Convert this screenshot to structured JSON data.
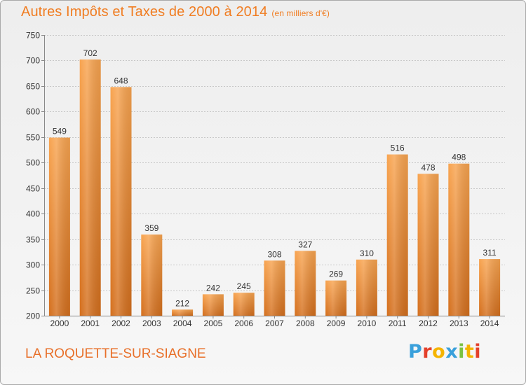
{
  "chart_data": {
    "type": "bar",
    "title": "Autres Impôts et Taxes de 2000 à 2014",
    "unit_label": "(en milliers d'€)",
    "categories": [
      "2000",
      "2001",
      "2002",
      "2003",
      "2004",
      "2005",
      "2006",
      "2007",
      "2008",
      "2009",
      "2010",
      "2011",
      "2012",
      "2013",
      "2014"
    ],
    "values": [
      549,
      702,
      648,
      359,
      212,
      242,
      245,
      308,
      327,
      269,
      310,
      516,
      478,
      498,
      311
    ],
    "ylim": [
      200,
      750
    ],
    "yticks": [
      200,
      250,
      300,
      350,
      400,
      450,
      500,
      550,
      600,
      650,
      700,
      750
    ],
    "grid": true,
    "bar_color_top": "#f8a450",
    "bar_color_bottom": "#d46f1d"
  },
  "footer": {
    "commune": "LA ROQUETTE-SUR-SIAGNE",
    "logo_letters": [
      "P",
      "r",
      "o",
      "x",
      "i",
      "t",
      "i"
    ],
    "logo_colors": [
      "#3aa0db",
      "#e4402b",
      "#f5b400",
      "#3aa0db",
      "#7ac142",
      "#f5b400",
      "#e4402b"
    ]
  }
}
